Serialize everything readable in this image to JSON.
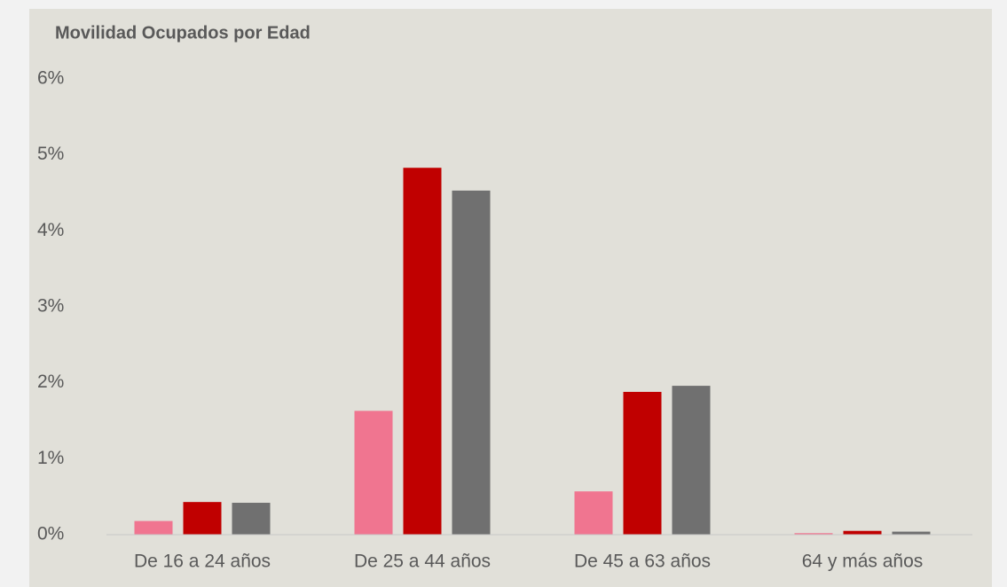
{
  "chart_data": {
    "type": "bar",
    "title": "Movilidad Ocupados por Edad",
    "categories": [
      "De 16 a 24 años",
      "De 25 a 44 años",
      "De 45 a 63 años",
      "64 y más años"
    ],
    "series": [
      {
        "color": "#f07590",
        "values": [
          0.18,
          1.63,
          0.57,
          0.02
        ]
      },
      {
        "color": "#c00000",
        "values": [
          0.43,
          4.83,
          1.88,
          0.05
        ]
      },
      {
        "color": "#707070",
        "values": [
          0.42,
          4.53,
          1.96,
          0.04
        ]
      }
    ],
    "ylim": [
      0,
      6
    ],
    "yticks": [
      {
        "value": 0,
        "label": "0%"
      },
      {
        "value": 1,
        "label": "1%"
      },
      {
        "value": 2,
        "label": "2%"
      },
      {
        "value": 3,
        "label": "3%"
      },
      {
        "value": 4,
        "label": "4%"
      },
      {
        "value": 5,
        "label": "5%"
      },
      {
        "value": 6,
        "label": "6%"
      }
    ],
    "grid": false
  }
}
